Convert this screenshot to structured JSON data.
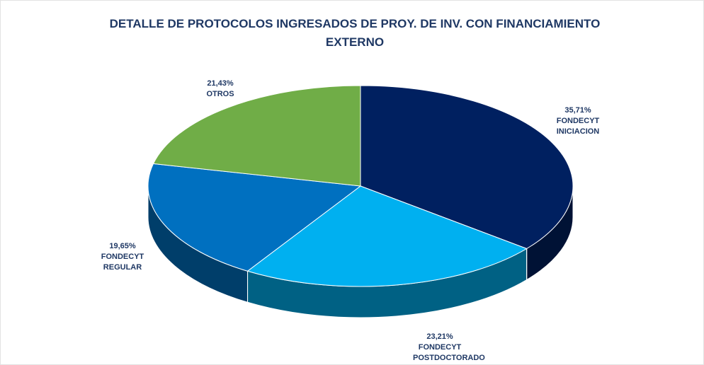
{
  "chart_data": {
    "type": "pie",
    "title": "DETALLE DE PROTOCOLOS  INGRESADOS DE PROY. DE INV. CON FINANCIAMIENTO EXTERNO",
    "categories": [
      "FONDECYT INICIACION",
      "FONDECYT POSTDOCTORADO",
      "FONDECYT REGULAR",
      "OTROS"
    ],
    "values": [
      35.71,
      23.21,
      19.65,
      21.43
    ],
    "value_labels": [
      "35,71%",
      "23,21%",
      "19,65%",
      "21,43%"
    ],
    "colors": [
      "#002060",
      "#00b0f0",
      "#0070c0",
      "#70ad47"
    ]
  }
}
